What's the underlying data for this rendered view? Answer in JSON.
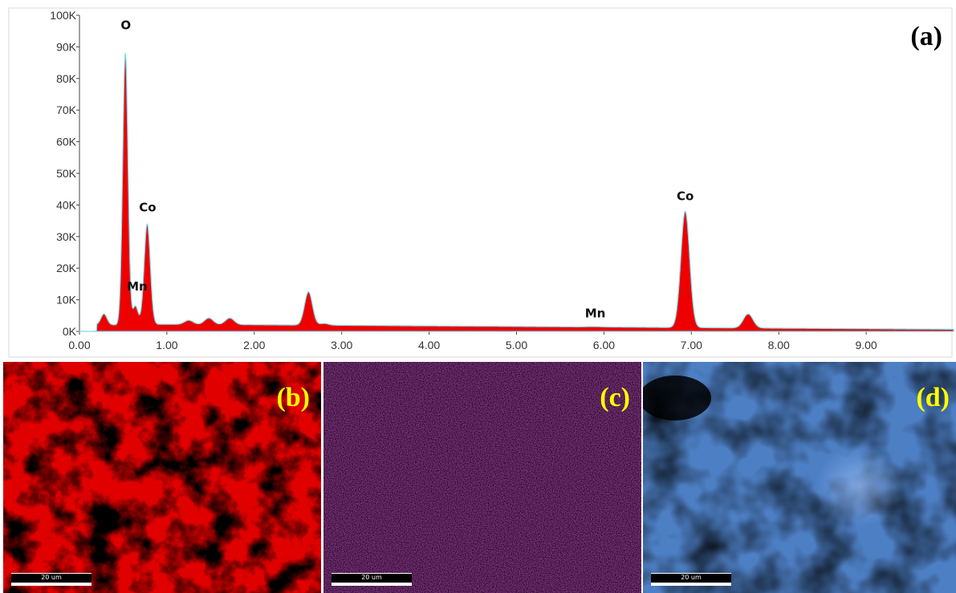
{
  "chart_data": {
    "type": "area",
    "title": "",
    "xlabel": "",
    "ylabel": "",
    "panel_label": "(a)",
    "xlim": [
      0,
      10
    ],
    "ylim": [
      0,
      100000
    ],
    "x_ticks": [
      {
        "value": 0,
        "label": "0.00"
      },
      {
        "value": 1,
        "label": "1.00"
      },
      {
        "value": 2,
        "label": "2.00"
      },
      {
        "value": 3,
        "label": "3.00"
      },
      {
        "value": 4,
        "label": "4.00"
      },
      {
        "value": 5,
        "label": "5.00"
      },
      {
        "value": 6,
        "label": "6.00"
      },
      {
        "value": 7,
        "label": "7.00"
      },
      {
        "value": 8,
        "label": "8.00"
      },
      {
        "value": 9,
        "label": "9.00"
      }
    ],
    "y_ticks": [
      {
        "value": 0,
        "label": "0K"
      },
      {
        "value": 10000,
        "label": "10K"
      },
      {
        "value": 20000,
        "label": "20K"
      },
      {
        "value": 30000,
        "label": "30K"
      },
      {
        "value": 40000,
        "label": "40K"
      },
      {
        "value": 50000,
        "label": "50K"
      },
      {
        "value": 60000,
        "label": "60K"
      },
      {
        "value": 70000,
        "label": "70K"
      },
      {
        "value": 80000,
        "label": "80K"
      },
      {
        "value": 90000,
        "label": "90K"
      },
      {
        "value": 100000,
        "label": "100K"
      }
    ],
    "series": [
      {
        "fill_color": "#ee0000",
        "outline_color": "#7fd8e8",
        "peaks": [
          {
            "x": 0.28,
            "y": 5500
          },
          {
            "x": 0.525,
            "y": 88000
          },
          {
            "x": 0.64,
            "y": 8000
          },
          {
            "x": 0.775,
            "y": 34000
          },
          {
            "x": 1.25,
            "y": 3500
          },
          {
            "x": 1.48,
            "y": 4200
          },
          {
            "x": 1.72,
            "y": 4200
          },
          {
            "x": 2.62,
            "y": 12500
          },
          {
            "x": 2.8,
            "y": 2500
          },
          {
            "x": 5.89,
            "y": 1500
          },
          {
            "x": 6.93,
            "y": 38000
          },
          {
            "x": 7.65,
            "y": 5500
          }
        ]
      }
    ],
    "annotations": [
      {
        "text": "O",
        "x": 0.53,
        "y": 95500
      },
      {
        "text": "Co",
        "x": 0.78,
        "y": 38000
      },
      {
        "text": "Mn",
        "x": 0.66,
        "y": 13000
      },
      {
        "text": "Mn",
        "x": 5.9,
        "y": 4500
      },
      {
        "text": "Co",
        "x": 6.93,
        "y": 41500
      }
    ]
  },
  "maps": [
    {
      "label": "(b)",
      "color": "#e00000",
      "scale_text": "20 um"
    },
    {
      "label": "(c)",
      "color": "#7a2f7a",
      "scale_text": "20 um"
    },
    {
      "label": "(d)",
      "color": "#4d7fc4",
      "scale_text": "20 um"
    }
  ]
}
